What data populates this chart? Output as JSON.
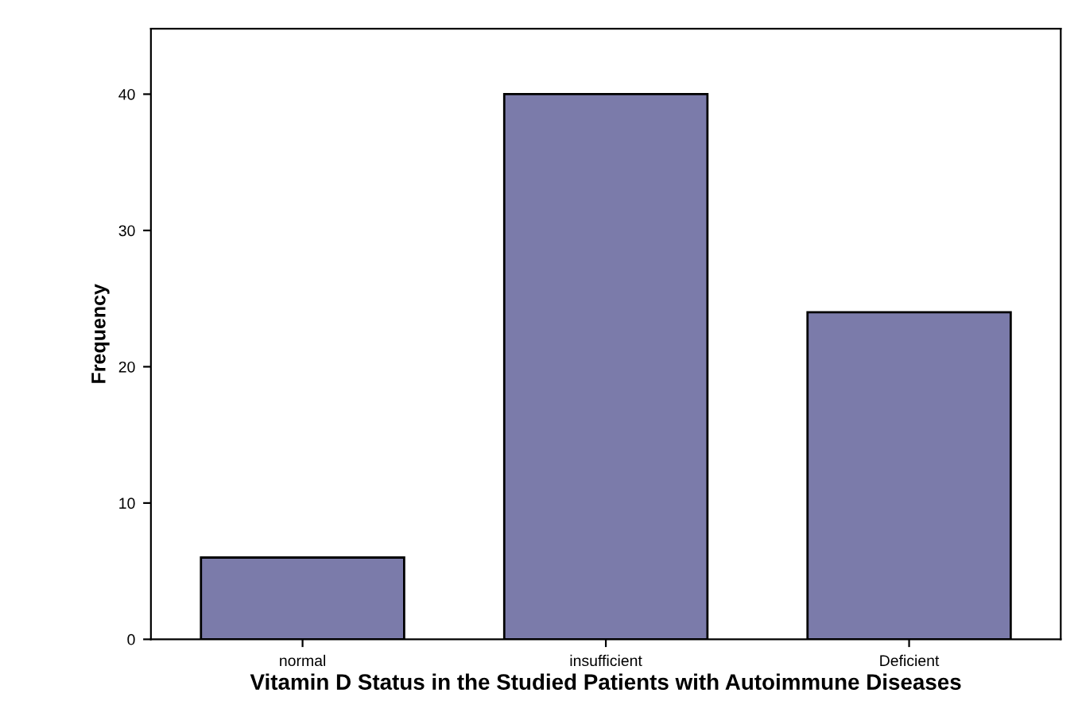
{
  "chart_data": {
    "type": "bar",
    "xlabel": "Vitamin D Status in the Studied Patients with Autoimmune Diseases",
    "ylabel": "Frequency",
    "categories": [
      "normal",
      "insufficient",
      "Deficient"
    ],
    "values": [
      6,
      40,
      24
    ],
    "color": "#7b7baa",
    "ylim": [
      0,
      44.8
    ],
    "yticks": [
      0,
      10,
      20,
      30,
      40
    ],
    "grid": false
  }
}
